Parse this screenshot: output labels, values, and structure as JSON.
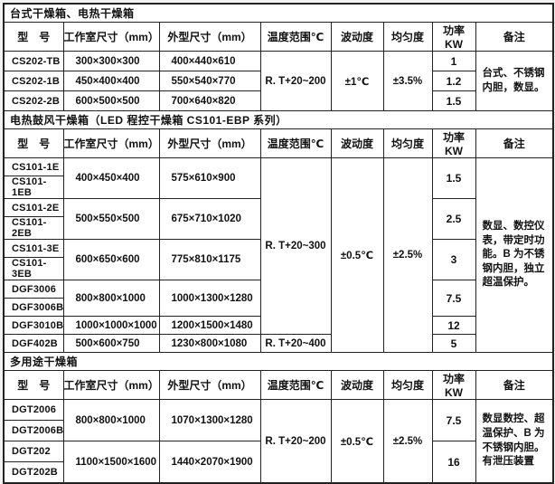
{
  "colors": {
    "border": "#222222",
    "table_background": "#ffffff",
    "page_margin": "#f3f3f1",
    "text": "#111111"
  },
  "table": {
    "headers": [
      "型　号",
      "工作室尺寸（mm）",
      "外型尺寸（mm）",
      "温度范围℃",
      "波动度",
      "均匀度",
      "功率 KW",
      "备注"
    ],
    "sections": [
      {
        "title": "台式干燥箱、电热干燥箱",
        "temp": "R. T+20~200",
        "fluctuation": "±1℃",
        "uniformity": "±3.5%",
        "note": "台式、不锈钢内胆，数显。",
        "rows": [
          {
            "model": "CS202-TB",
            "work": "300×300×300",
            "outer": "400×440×610",
            "power": "1"
          },
          {
            "model": "CS202-1B",
            "work": "450×400×400",
            "outer": "550×540×770",
            "power": "1.2"
          },
          {
            "model": "CS202-2B",
            "work": "600×500×500",
            "outer": "700×640×820",
            "power": "1.5"
          }
        ]
      },
      {
        "title": "电热鼓风干燥箱（LED 程控干燥箱 CS101-EBP 系列）",
        "temp": "R. T+20~300",
        "temp2": "R. T+20~400",
        "fluctuation": "±0.5℃",
        "uniformity": "±2.5%",
        "note": "数显、数控仪表，带定时功能。B 为不锈钢内胆，独立超温保护。",
        "pairs": [
          {
            "m1": "CS101-1E",
            "m2": "CS101-1EB",
            "work": "400×450×400",
            "outer": "575×610×900",
            "power": "1.5"
          },
          {
            "m1": "CS101-2E",
            "m2": "CS101-2EB",
            "work": "500×550×500",
            "outer": "675×710×1020",
            "power": "2.5"
          },
          {
            "m1": "CS101-3E",
            "m2": "CS101-3EB",
            "work": "600×650×600",
            "outer": "775×810×1175",
            "power": "3"
          },
          {
            "m1": "DGF3006",
            "m2": "DGF3006B",
            "work": "800×800×1000",
            "outer": "1000×1300×1280",
            "power": "7.5"
          }
        ],
        "singles": [
          {
            "model": "DGF3010B",
            "work": "1000×1000×1000",
            "outer": "1200×1500×1480",
            "power": "12"
          },
          {
            "model": "DGF402B",
            "work": "500×600×750",
            "outer": "1230×800×1080",
            "power": "5"
          }
        ]
      },
      {
        "title": "多用途干燥箱",
        "temp": "R. T+20~200",
        "fluctuation": "±0.5℃",
        "uniformity": "±2.5%",
        "note": "数显数控、超温保护、B 为不锈钢内胆。有泄压装置",
        "pairs": [
          {
            "m1": "DGT2006",
            "m2": "DGT2006B",
            "work": "800×800×1000",
            "outer": "1070×1300×1280",
            "power": "7.5"
          },
          {
            "m1": "DGT202",
            "m2": "DGT202B",
            "work": "1100×1500×1600",
            "outer": "1440×2070×1900",
            "power": "16"
          }
        ]
      }
    ]
  }
}
